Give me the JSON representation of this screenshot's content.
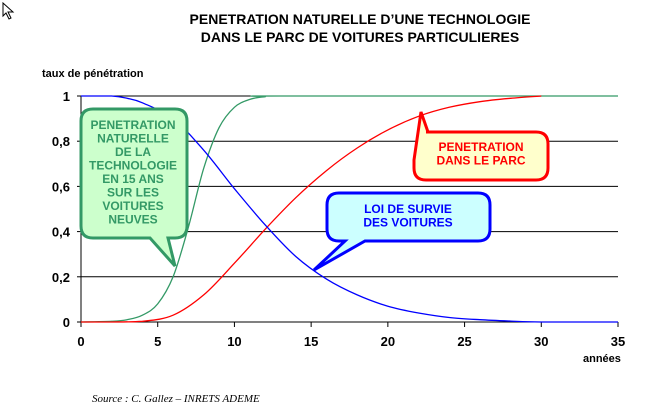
{
  "title_line1": "PENETRATION NATURELLE D’UNE TECHNOLOGIE",
  "title_line2": "DANS LE PARC DE VOITURES PARTICULIERES",
  "source": "Source : C. Gallez – INRETS ADEME",
  "colors": {
    "green": "#339966",
    "red": "#ff0000",
    "blue": "#0000ff"
  },
  "chart_data": {
    "type": "line",
    "ylabel": "taux de pénétration",
    "xlabel": "années",
    "xlim": [
      0,
      35
    ],
    "ylim": [
      0,
      1
    ],
    "x_ticks": [
      "0",
      "5",
      "10",
      "15",
      "20",
      "25",
      "30",
      "35"
    ],
    "y_ticks": [
      "0",
      "0,2",
      "0,4",
      "0,6",
      "0,8",
      "1"
    ],
    "grid": "horizontal",
    "series": [
      {
        "color": "#339966",
        "points": [
          [
            0,
            0
          ],
          [
            2,
            0.003
          ],
          [
            3,
            0.01
          ],
          [
            4,
            0.03
          ],
          [
            5,
            0.08
          ],
          [
            6,
            0.2
          ],
          [
            7,
            0.42
          ],
          [
            8,
            0.68
          ],
          [
            9,
            0.86
          ],
          [
            10,
            0.95
          ],
          [
            11,
            0.985
          ],
          [
            12,
            0.997
          ],
          [
            13,
            1.0
          ],
          [
            35,
            1.0
          ]
        ]
      },
      {
        "color": "#ff0000",
        "points": [
          [
            0,
            0
          ],
          [
            2,
            0.0
          ],
          [
            4,
            0.003
          ],
          [
            6,
            0.03
          ],
          [
            8,
            0.12
          ],
          [
            10,
            0.26
          ],
          [
            12,
            0.41
          ],
          [
            14,
            0.55
          ],
          [
            16,
            0.67
          ],
          [
            18,
            0.77
          ],
          [
            20,
            0.85
          ],
          [
            22,
            0.91
          ],
          [
            24,
            0.95
          ],
          [
            26,
            0.975
          ],
          [
            28,
            0.99
          ],
          [
            30,
            1.0
          ]
        ]
      },
      {
        "color": "#0000ff",
        "points": [
          [
            0,
            1.0
          ],
          [
            2,
            1.0
          ],
          [
            3,
            0.99
          ],
          [
            4,
            0.97
          ],
          [
            6,
            0.9
          ],
          [
            8,
            0.76
          ],
          [
            10,
            0.59
          ],
          [
            12,
            0.43
          ],
          [
            14,
            0.29
          ],
          [
            16,
            0.19
          ],
          [
            18,
            0.12
          ],
          [
            20,
            0.07
          ],
          [
            22,
            0.04
          ],
          [
            24,
            0.02
          ],
          [
            26,
            0.01
          ],
          [
            28,
            0.004
          ],
          [
            30,
            0.0
          ],
          [
            35,
            0.0
          ]
        ]
      }
    ],
    "annotations": [
      {
        "lines": [
          "PENETRATION",
          "NATURELLE",
          "DE LA",
          "TECHNOLOGIE",
          "EN 15 ANS",
          "SUR LES",
          "VOITURES",
          "NEUVES"
        ],
        "color": "#339966"
      },
      {
        "lines": [
          "PENETRATION",
          "DANS LE PARC"
        ],
        "color": "#ff0000"
      },
      {
        "lines": [
          "LOI DE SURVIE",
          "DES VOITURES"
        ],
        "color": "#0000ff"
      }
    ]
  }
}
